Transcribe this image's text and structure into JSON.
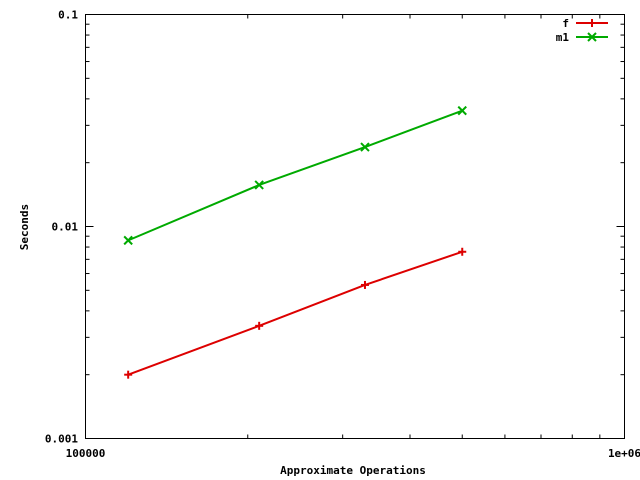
{
  "chart_data": {
    "type": "line",
    "title": "",
    "xlabel": "Approximate Operations",
    "ylabel": "Seconds",
    "xscale": "log",
    "yscale": "log",
    "xlim": [
      100000,
      1000000
    ],
    "ylim": [
      0.001,
      0.1
    ],
    "grid": false,
    "legend_position": "top-right",
    "x_ticks": [
      {
        "value": 100000,
        "label": "100000"
      },
      {
        "value": 1000000,
        "label": "1e+06"
      }
    ],
    "y_ticks": [
      {
        "value": 0.001,
        "label": "0.001"
      },
      {
        "value": 0.01,
        "label": "0.01"
      },
      {
        "value": 0.1,
        "label": "0.1"
      }
    ],
    "series": [
      {
        "name": "f",
        "color": "#dd0000",
        "marker": "plus",
        "x": [
          120000,
          210000,
          330000,
          500000
        ],
        "y": [
          0.002,
          0.0034,
          0.0053,
          0.0076
        ]
      },
      {
        "name": "m1",
        "color": "#00aa00",
        "marker": "cross",
        "x": [
          120000,
          210000,
          330000,
          500000
        ],
        "y": [
          0.0086,
          0.0157,
          0.0237,
          0.0352
        ]
      }
    ]
  }
}
